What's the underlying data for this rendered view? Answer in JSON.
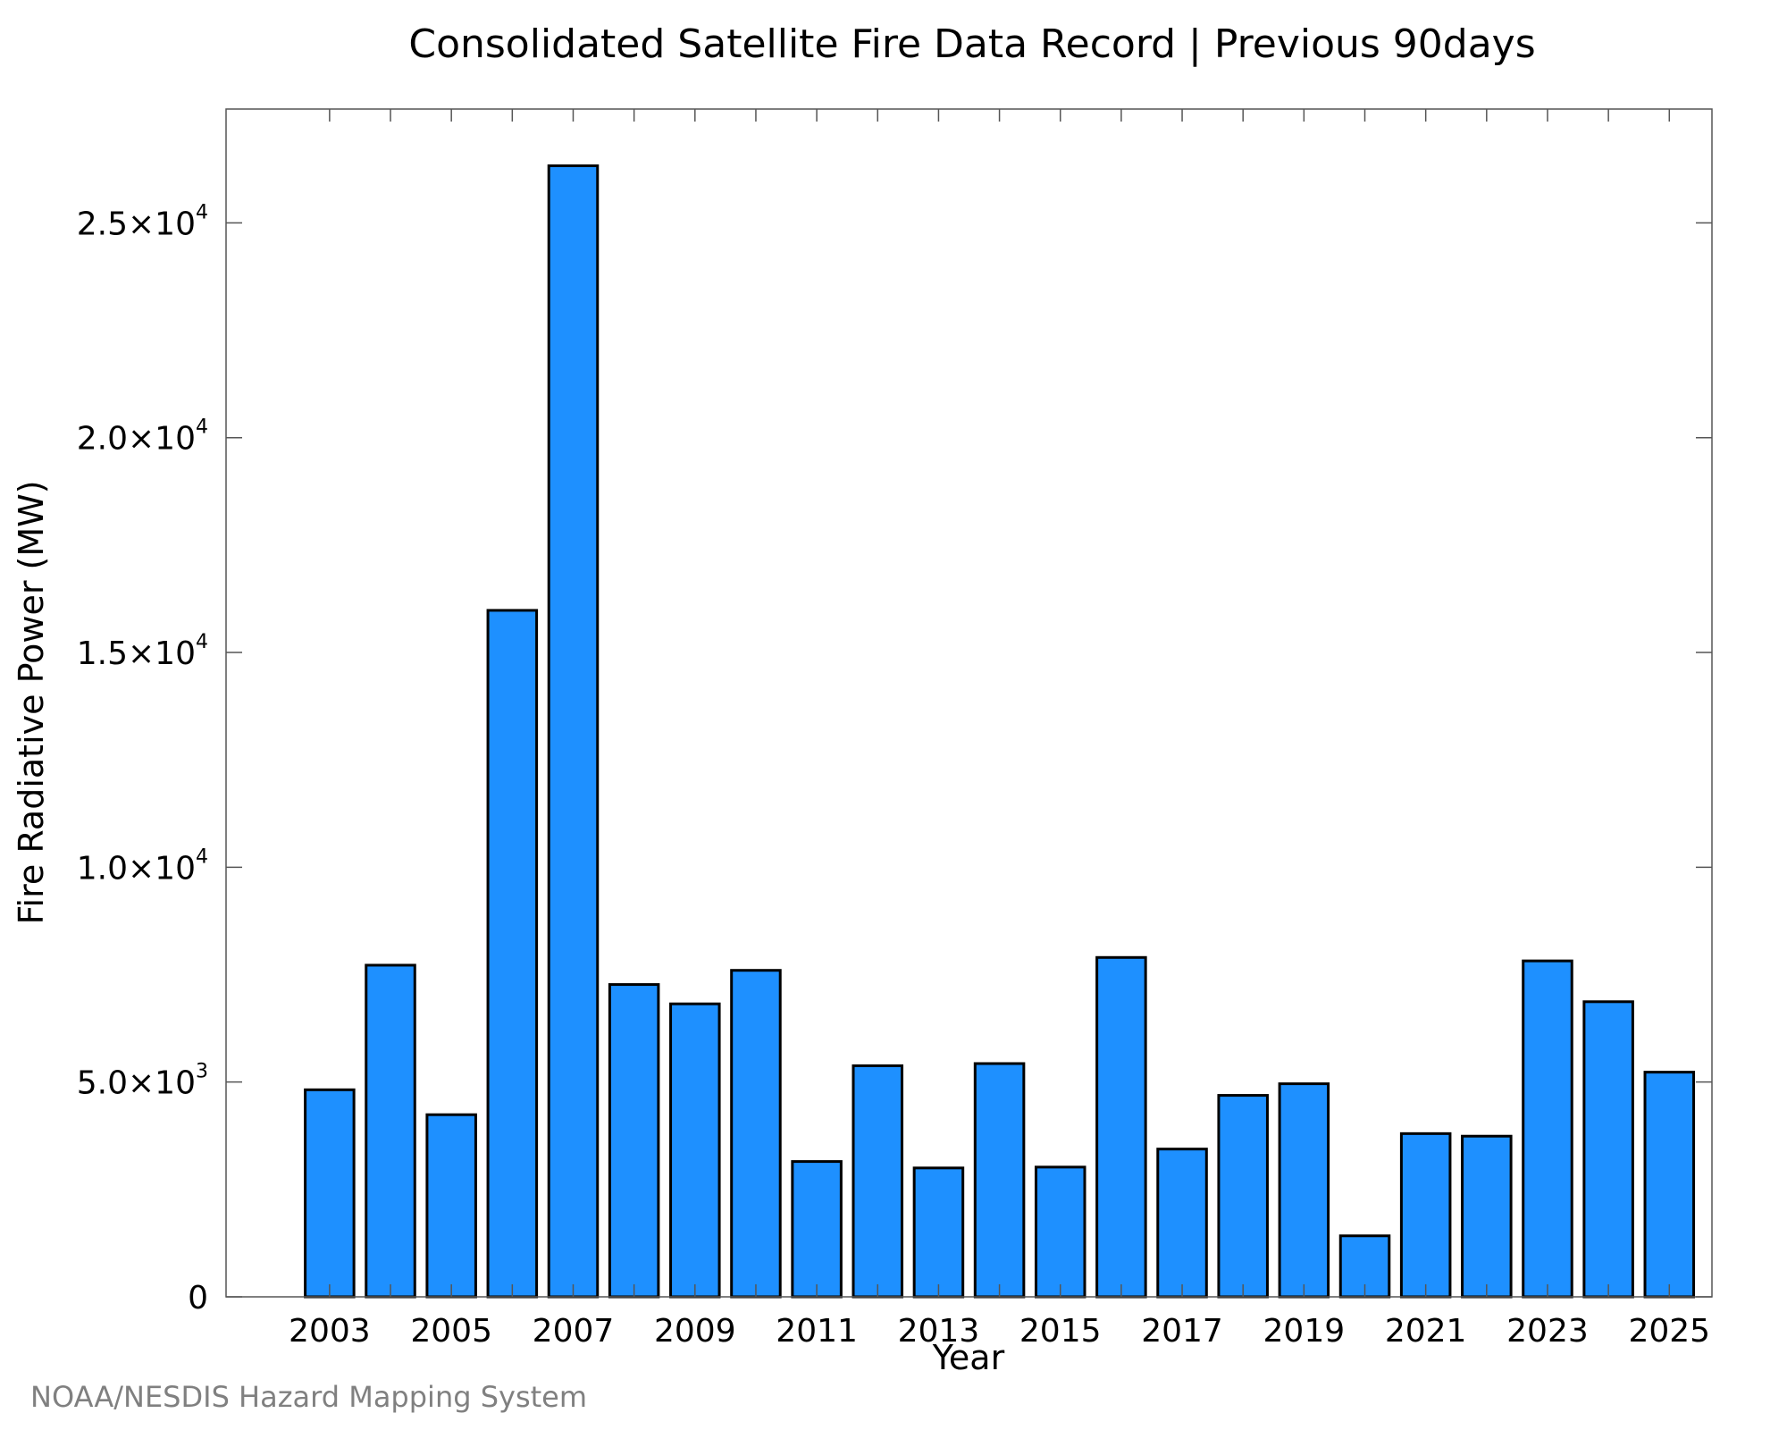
{
  "chart_data": {
    "type": "bar",
    "title": "Consolidated Satellite Fire Data Record | Previous 90days",
    "xlabel": "Year",
    "ylabel": "Fire Radiative Power (MW)",
    "credit": "NOAA/NESDIS Hazard Mapping System",
    "bar_color": "#1e90ff",
    "edge_color": "#000000",
    "categories": [
      2003,
      2004,
      2005,
      2006,
      2007,
      2008,
      2009,
      2010,
      2011,
      2012,
      2013,
      2014,
      2015,
      2016,
      2017,
      2018,
      2019,
      2020,
      2021,
      2022,
      2023,
      2024,
      2025
    ],
    "values": [
      4820,
      7720,
      4240,
      15980,
      26330,
      7270,
      6820,
      7600,
      3150,
      5380,
      3000,
      5430,
      3020,
      7900,
      3440,
      4690,
      4960,
      1420,
      3800,
      3740,
      7820,
      6870,
      5230
    ],
    "xlim": [
      2001.3,
      2025.7
    ],
    "ylim": [
      0,
      27650
    ],
    "x_ticks": [
      2003,
      2005,
      2007,
      2009,
      2011,
      2013,
      2015,
      2017,
      2019,
      2021,
      2023,
      2025
    ],
    "x_tick_labels": [
      "2003",
      "2005",
      "2007",
      "2009",
      "2011",
      "2013",
      "2015",
      "2017",
      "2019",
      "2021",
      "2023",
      "2025"
    ],
    "y_ticks": [
      0,
      5000,
      10000,
      15000,
      20000,
      25000
    ],
    "y_tick_labels": [
      {
        "mantissa": "0",
        "exponent": ""
      },
      {
        "mantissa": "5.0×10",
        "exponent": "3"
      },
      {
        "mantissa": "1.0×10",
        "exponent": "4"
      },
      {
        "mantissa": "1.5×10",
        "exponent": "4"
      },
      {
        "mantissa": "2.0×10",
        "exponent": "4"
      },
      {
        "mantissa": "2.5×10",
        "exponent": "4"
      }
    ],
    "grid": false
  }
}
